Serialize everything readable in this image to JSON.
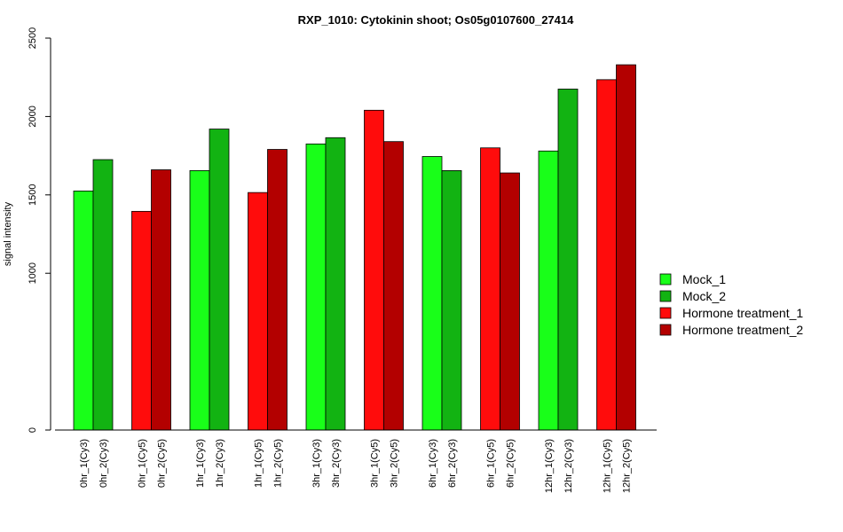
{
  "chart_data": {
    "type": "bar",
    "title": "RXP_1010: Cytokinin shoot; Os05g0107600_27414",
    "ylabel": "signal intensity",
    "xlabel": "",
    "ylim": [
      0,
      2500
    ],
    "yticks": [
      "0",
      "1000",
      "1500",
      "2000",
      "2500"
    ],
    "categories": [
      "0hr_1(Cy3)",
      "0hr_2(Cy3)",
      "0hr_1(Cy5)",
      "0hr_2(Cy5)",
      "1hr_1(Cy3)",
      "1hr_2(Cy3)",
      "1hr_1(Cy5)",
      "1hr_2(Cy5)",
      "3hr_1(Cy3)",
      "3hr_2(Cy3)",
      "3hr_1(Cy5)",
      "3hr_2(Cy5)",
      "6hr_1(Cy3)",
      "6hr_2(Cy3)",
      "6hr_1(Cy5)",
      "6hr_2(Cy5)",
      "12hr_1(Cy3)",
      "12hr_2(Cy3)",
      "12hr_1(Cy5)",
      "12hr_2(Cy5)"
    ],
    "values": [
      1525,
      1725,
      1395,
      1660,
      1655,
      1920,
      1515,
      1790,
      1825,
      1865,
      2040,
      1840,
      1745,
      1655,
      1800,
      1640,
      1780,
      2175,
      2235,
      2330
    ],
    "bar_series": [
      0,
      1,
      2,
      3,
      0,
      1,
      2,
      3,
      0,
      1,
      2,
      3,
      0,
      1,
      2,
      3,
      0,
      1,
      2,
      3
    ],
    "series": [
      {
        "name": "Mock_1",
        "color": "#19ff19"
      },
      {
        "name": "Mock_2",
        "color": "#12b312"
      },
      {
        "name": "Hormone treatment_1",
        "color": "#ff0c0c"
      },
      {
        "name": "Hormone treatment_2",
        "color": "#b30000"
      }
    ],
    "legend_position": "right",
    "grid": false
  }
}
